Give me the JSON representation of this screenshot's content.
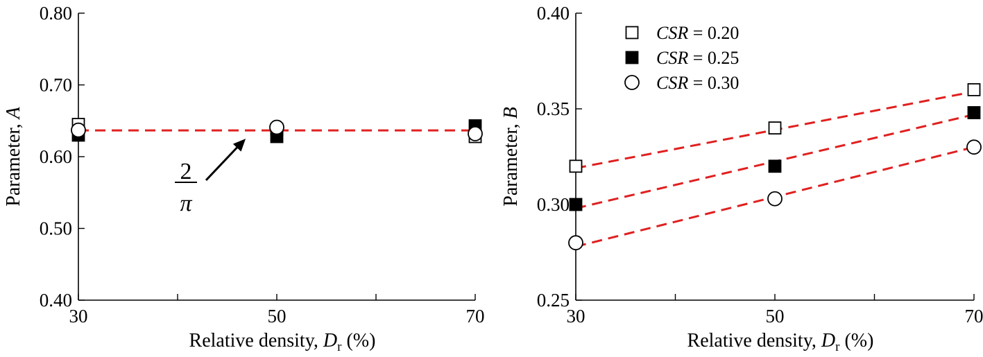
{
  "chart_data": [
    {
      "type": "scatter",
      "xlabel": "Relative density, ",
      "xlabel_var": "D",
      "xlabel_sub": "r",
      "xlabel_unit": " (%)",
      "ylabel": "Parameter, ",
      "ylabel_var": "A",
      "xlim": [
        30,
        70
      ],
      "ylim": [
        0.4,
        0.8
      ],
      "xticks": [
        30,
        40,
        50,
        60,
        70
      ],
      "xticklabels": [
        "30",
        "",
        "50",
        "",
        "70"
      ],
      "yticks": [
        0.4,
        0.5,
        0.6,
        0.7,
        0.8
      ],
      "yticklabels": [
        "0.40",
        "0.50",
        "0.60",
        "0.70",
        "0.80"
      ],
      "grid": false,
      "series": [
        {
          "marker": "square-open",
          "x": [
            30,
            50,
            70
          ],
          "y": [
            0.645,
            0.638,
            0.628
          ]
        },
        {
          "marker": "square-filled",
          "x": [
            30,
            50,
            70
          ],
          "y": [
            0.63,
            0.628,
            0.643
          ]
        },
        {
          "marker": "circle-open",
          "x": [
            30,
            50,
            70
          ],
          "y": [
            0.637,
            0.641,
            0.632
          ]
        }
      ],
      "fit_lines": [
        {
          "x": [
            30,
            70
          ],
          "y": [
            0.6366,
            0.6366
          ],
          "color": "#e02020",
          "style": "dashed"
        }
      ],
      "annotation": {
        "numerator": "2",
        "denominator": "π",
        "points_to": [
          47,
          0.6366
        ]
      }
    },
    {
      "type": "scatter",
      "xlabel": "Relative density, ",
      "xlabel_var": "D",
      "xlabel_sub": "r",
      "xlabel_unit": " (%)",
      "ylabel": "Parameter, ",
      "ylabel_var": "B",
      "xlim": [
        30,
        70
      ],
      "ylim": [
        0.25,
        0.4
      ],
      "xticks": [
        30,
        40,
        50,
        60,
        70
      ],
      "xticklabels": [
        "30",
        "",
        "50",
        "",
        "70"
      ],
      "yticks": [
        0.25,
        0.3,
        0.35,
        0.4
      ],
      "yticklabels": [
        "0.25",
        "0.30",
        "0.35",
        "0.40"
      ],
      "grid": false,
      "legend_position": "top-left",
      "series": [
        {
          "name_var": "CSR",
          "name_value": " = 0.20",
          "marker": "square-open",
          "x": [
            30,
            50,
            70
          ],
          "y": [
            0.32,
            0.34,
            0.36
          ]
        },
        {
          "name_var": "CSR",
          "name_value": " = 0.25",
          "marker": "square-filled",
          "x": [
            30,
            50,
            70
          ],
          "y": [
            0.3,
            0.32,
            0.348
          ]
        },
        {
          "name_var": "CSR",
          "name_value": " = 0.30",
          "marker": "circle-open",
          "x": [
            30,
            50,
            70
          ],
          "y": [
            0.28,
            0.303,
            0.33
          ]
        }
      ],
      "fit_lines": [
        {
          "x": [
            30,
            70
          ],
          "y": [
            0.319,
            0.359
          ],
          "color": "#e02020",
          "style": "dashed"
        },
        {
          "x": [
            30,
            70
          ],
          "y": [
            0.298,
            0.347
          ],
          "color": "#e02020",
          "style": "dashed"
        },
        {
          "x": [
            30,
            70
          ],
          "y": [
            0.278,
            0.33
          ],
          "color": "#e02020",
          "style": "dashed"
        }
      ]
    }
  ]
}
